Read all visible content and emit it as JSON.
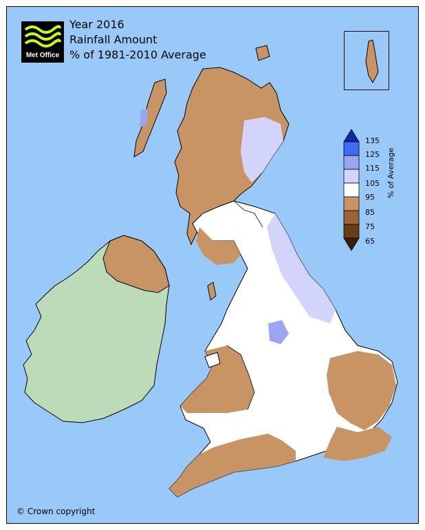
{
  "title": {
    "line1": "Year 2016",
    "line2": "Rainfall Amount",
    "line3": "% of 1981-2010 Average"
  },
  "logo": {
    "text": "Met Office"
  },
  "legend": {
    "title": "% of Average",
    "ticks": [
      "135",
      "125",
      "115",
      "105",
      "95",
      "85",
      "75",
      "65"
    ],
    "bands": [
      {
        "label": ">135",
        "color": "#0b2aa8"
      },
      {
        "label": "125-135",
        "color": "#3d6cf2"
      },
      {
        "label": "115-125",
        "color": "#9aa6f4"
      },
      {
        "label": "105-115",
        "color": "#d3d4fb"
      },
      {
        "label": "95-105",
        "color": "#ffffff"
      },
      {
        "label": "85-95",
        "color": "#c89464"
      },
      {
        "label": "75-85",
        "color": "#9a6434"
      },
      {
        "label": "65-75",
        "color": "#6b3d14"
      },
      {
        "label": "<65",
        "color": "#3d1d05"
      }
    ]
  },
  "colors": {
    "sea": "#99c9f8",
    "ireland": "#bcdbb8",
    "brown": "#c89464",
    "white": "#ffffff",
    "lilac": "#d3d4fb",
    "blue": "#9aa6f4"
  },
  "copyright": "© Crown copyright"
}
